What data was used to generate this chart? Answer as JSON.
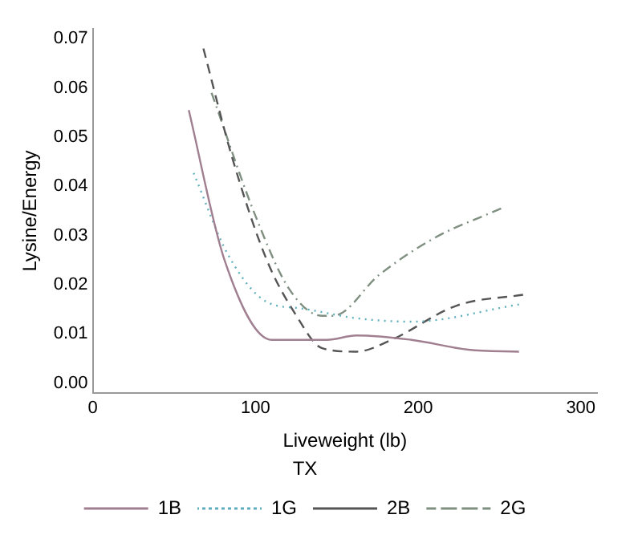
{
  "chart_data": {
    "type": "line",
    "xlabel": "Liveweight (lb)",
    "ylabel": "Lysine/Energy",
    "legend_title": "TX",
    "legend": "bottom",
    "grid": false,
    "marker": "none",
    "xlim": [
      0,
      310
    ],
    "xticks": [
      0,
      100,
      200,
      300
    ],
    "ylim": [
      -0.002,
      0.072
    ],
    "yticks": [
      {
        "value": 0,
        "label": "0.00"
      },
      {
        "value": 0.01,
        "label": "0.01"
      },
      {
        "value": 0.02,
        "label": "0.02"
      },
      {
        "value": 0.03,
        "label": "0.03"
      },
      {
        "value": 0.04,
        "label": "0.04"
      },
      {
        "value": 0.05,
        "label": "0.05"
      },
      {
        "value": 0.06,
        "label": "0.06"
      },
      {
        "value": 0.07,
        "label": "0.07"
      }
    ],
    "series": [
      {
        "name": "1B",
        "color": "#a07f90",
        "line_style": "solid",
        "x": [
          59,
          81,
          110,
          144,
          162,
          196,
          231,
          262
        ],
        "values": [
          0.0555,
          0.025,
          0.0088,
          0.0088,
          0.0097,
          0.0088,
          0.0068,
          0.0064
        ]
      },
      {
        "name": "1G",
        "color": "#5fb0bc",
        "line_style": "dotted",
        "x": [
          62,
          83,
          107,
          128,
          162,
          196,
          262
        ],
        "values": [
          0.0427,
          0.0262,
          0.0165,
          0.0152,
          0.0132,
          0.0125,
          0.016
        ]
      },
      {
        "name": "2B",
        "color": "#555555",
        "line_style": "dashed",
        "x": [
          68,
          86,
          107,
          125,
          141,
          162,
          183,
          224,
          265
        ],
        "values": [
          0.068,
          0.0455,
          0.025,
          0.0138,
          0.0071,
          0.0064,
          0.0087,
          0.0158,
          0.018
        ]
      },
      {
        "name": "2G",
        "color": "#7f8f80",
        "line_style": "dashdot",
        "x": [
          73,
          100,
          121,
          141,
          148,
          176,
          210,
          251
        ],
        "values": [
          0.059,
          0.034,
          0.019,
          0.0137,
          0.0137,
          0.022,
          0.0295,
          0.0355
        ]
      }
    ]
  }
}
